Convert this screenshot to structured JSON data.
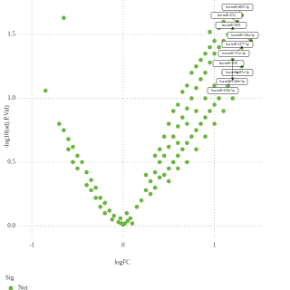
{
  "chart_data": {
    "type": "scatter",
    "x_label": "logFC",
    "y_label": "-log10(adj.P.Val)",
    "legend_title": "Sig",
    "xlim": [
      -1.15,
      1.53
    ],
    "ylim": [
      -0.09,
      1.77
    ],
    "xticks": [
      -1,
      0,
      1
    ],
    "yticks": [
      {
        "value": 0,
        "label": "0.0"
      },
      0.5,
      {
        "value": 1,
        "label": "1.0"
      },
      1.5
    ],
    "grid": true,
    "series": [
      {
        "name": "Not",
        "color": "#6ab43f",
        "x": [
          -0.05,
          -0.1,
          -0.15,
          -0.2,
          -0.25,
          -0.3,
          -0.35,
          -0.4,
          -0.45,
          -0.5,
          -0.55,
          -0.6,
          -0.65,
          -0.7,
          -0.3,
          -0.4,
          -0.2,
          -0.5,
          -0.85,
          -0.65,
          -0.12,
          -0.55,
          -0.35,
          -0.6,
          -0.25,
          0,
          0.02,
          -0.02,
          0.05,
          0.08,
          0.04,
          -0.03,
          0.1,
          0.15,
          0.2,
          0.25,
          0.3,
          0.35,
          0.4,
          0.45,
          0.5,
          0.55,
          0.6,
          0.65,
          0.7,
          0.75,
          0.8,
          0.85,
          0.9,
          0.95,
          1.0,
          1.05,
          1.1,
          0.3,
          0.35,
          0.4,
          0.45,
          0.5,
          0.55,
          0.6,
          0.65,
          0.7,
          0.75,
          0.8,
          0.85,
          0.9,
          0.95,
          1.0,
          1.05,
          1.1,
          1.15,
          1.2,
          1.25,
          0.4,
          0.5,
          0.6,
          0.7,
          0.8,
          0.9,
          1.0,
          0.55,
          0.65,
          0.75,
          0.85,
          0.95,
          0.45,
          0.35,
          0.25,
          0.6,
          0.7,
          0.8,
          0.9,
          1.0,
          1.1,
          1.2,
          1.3,
          1.3,
          1.35,
          1.4,
          1.2,
          1.1,
          1.0,
          0.9,
          0.8,
          0.7,
          0.6,
          0.5,
          1.05,
          1.1,
          1.15,
          1.2,
          1.25,
          1.3,
          0.95
        ],
        "values": [
          0.03,
          0.08,
          0.12,
          0.18,
          0.22,
          0.3,
          0.36,
          0.42,
          0.5,
          0.55,
          0.62,
          0.68,
          0.75,
          0.8,
          0.22,
          0.32,
          0.1,
          0.45,
          1.06,
          1.63,
          0.05,
          0.5,
          0.28,
          0.6,
          0.15,
          0.01,
          0.02,
          0.02,
          0.04,
          0.06,
          0.1,
          0.06,
          0.02,
          0.15,
          0.2,
          0.28,
          0.35,
          0.42,
          0.5,
          0.55,
          0.62,
          0.7,
          0.78,
          0.85,
          0.92,
          1.0,
          1.08,
          1.15,
          1.2,
          1.28,
          1.35,
          1.4,
          1.45,
          0.25,
          0.3,
          0.38,
          0.4,
          0.45,
          0.5,
          0.55,
          0.6,
          0.65,
          0.7,
          0.75,
          0.8,
          0.85,
          0.9,
          0.95,
          1.0,
          1.05,
          1.1,
          1.15,
          1.2,
          0.6,
          0.8,
          0.95,
          1.1,
          1.25,
          1.35,
          1.45,
          0.9,
          1.05,
          1.2,
          1.3,
          1.4,
          0.7,
          0.55,
          0.4,
          0.65,
          0.8,
          0.9,
          1.0,
          1.1,
          1.2,
          1.3,
          1.25,
          1.4,
          1.35,
          1.45,
          1.0,
          0.9,
          0.8,
          0.7,
          0.6,
          0.5,
          0.45,
          0.35,
          1.55,
          1.6,
          1.5,
          1.55,
          1.6,
          1.65,
          1.52
        ]
      }
    ],
    "annotations": [
      {
        "text": "hsa-miR-6803-3p",
        "x": 1.3,
        "y": 1.65
      },
      {
        "text": "hsa-miR-4721",
        "x": 1.25,
        "y": 1.6
      },
      {
        "text": "hsa-miR-3918",
        "x": 1.2,
        "y": 1.55
      },
      {
        "text": "hsa-miR-146a-3p",
        "x": 1.4,
        "y": 1.45
      },
      {
        "text": "hsa-miR-2277-3p",
        "x": 1.35,
        "y": 1.35
      },
      {
        "text": "hsa-miR-371a-3p",
        "x": 1.3,
        "y": 1.4
      },
      {
        "text": "hsa-miR-3185",
        "x": 1.3,
        "y": 1.25
      },
      {
        "text": "hsa-miR-487a-3p",
        "x": 1.25,
        "y": 1.2
      },
      {
        "text": "hsa-miR-1246b-3p",
        "x": 1.2,
        "y": 1.3
      },
      {
        "text": "hsa-miR-4766-5p",
        "x": 1.2,
        "y": 1.15
      }
    ]
  }
}
